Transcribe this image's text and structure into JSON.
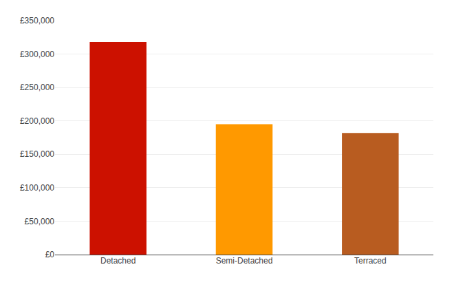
{
  "chart_data": {
    "type": "bar",
    "categories": [
      "Detached",
      "Semi-Detached",
      "Terraced"
    ],
    "values": [
      318000,
      195000,
      182000
    ],
    "colors": [
      "#cc1100",
      "#ff9900",
      "#b85c20"
    ],
    "ylim": [
      0,
      350000
    ],
    "yticks": [
      {
        "value": 0,
        "label": "£0"
      },
      {
        "value": 50000,
        "label": "£50,000"
      },
      {
        "value": 100000,
        "label": "£100,000"
      },
      {
        "value": 150000,
        "label": "£150,000"
      },
      {
        "value": 200000,
        "label": "£200,000"
      },
      {
        "value": 250000,
        "label": "£250,000"
      },
      {
        "value": 300000,
        "label": "£300,000"
      },
      {
        "value": 350000,
        "label": "£350,000"
      }
    ],
    "grid": true
  }
}
